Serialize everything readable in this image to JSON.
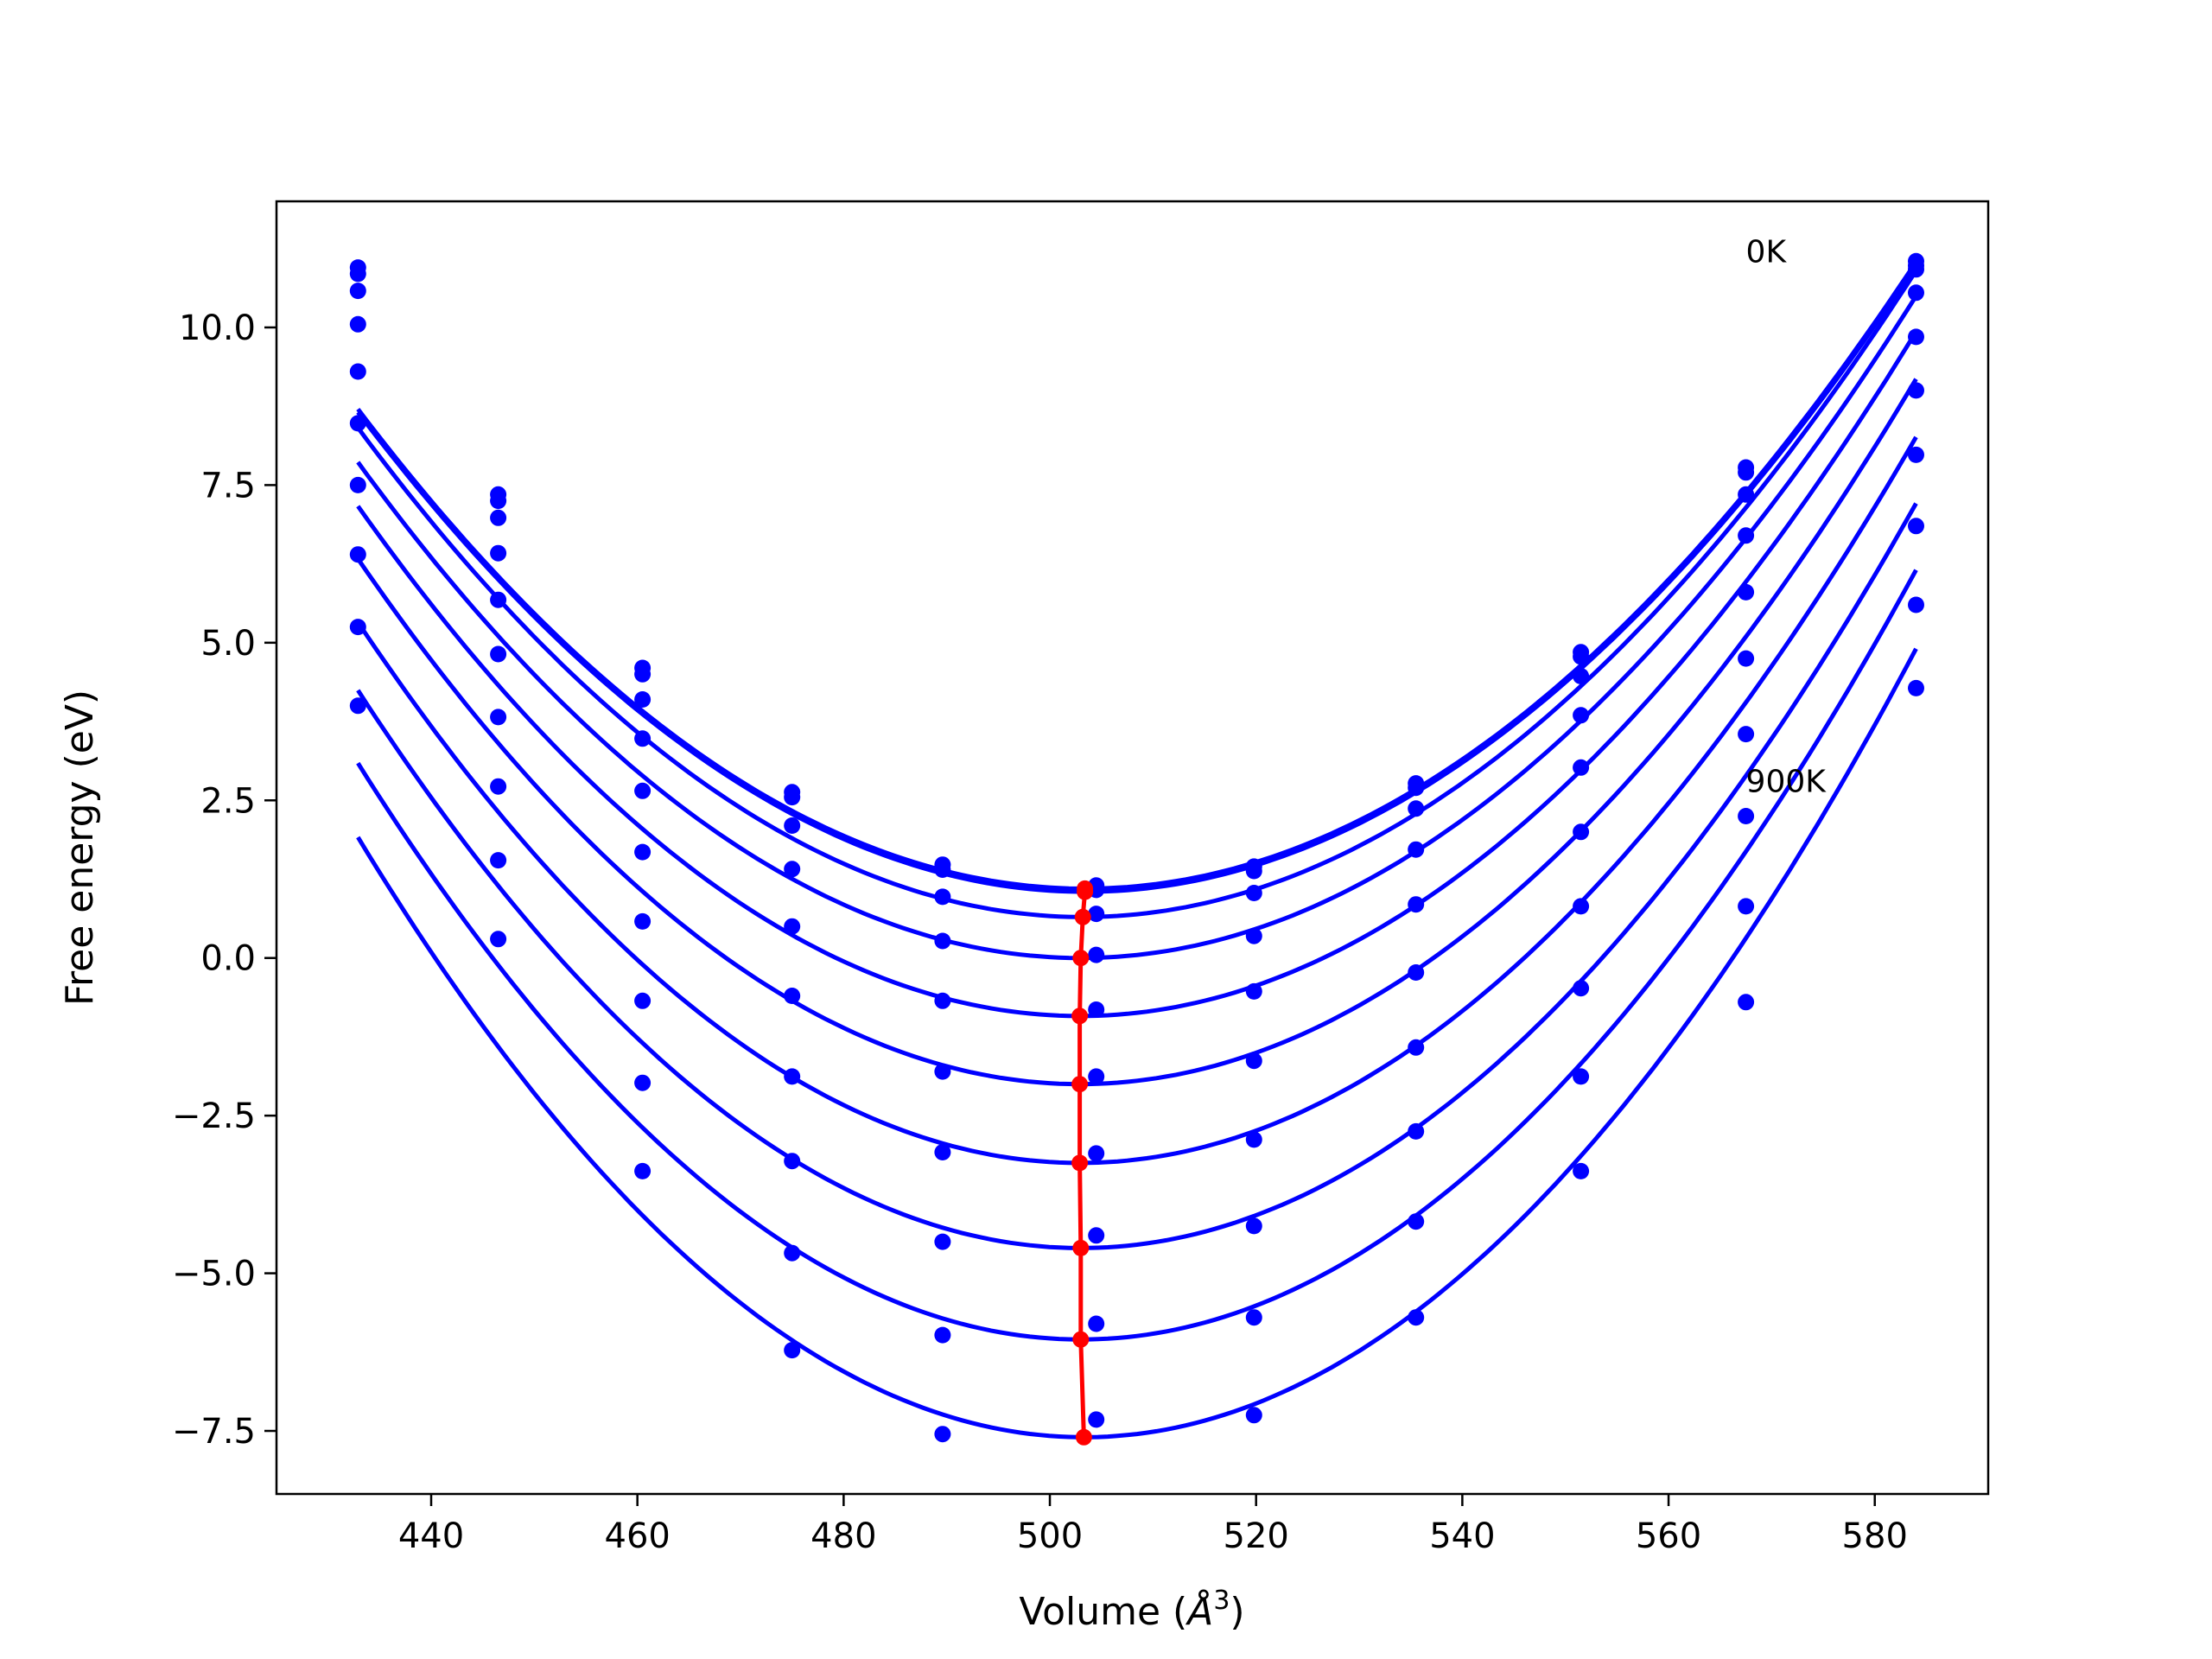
{
  "chart_data": {
    "type": "scatter",
    "xlabel": "Volume",
    "xunit": "Å",
    "xunit_exp": "3",
    "ylabel": "Free energy (eV)",
    "xlim": [
      425,
      591
    ],
    "ylim": [
      -8.5,
      12.0
    ],
    "xticks": [
      440,
      460,
      480,
      500,
      520,
      540,
      560,
      580
    ],
    "xtick_labels": [
      "440",
      "460",
      "480",
      "500",
      "520",
      "540",
      "560",
      "580"
    ],
    "yticks": [
      -7.5,
      -5.0,
      -2.5,
      0.0,
      2.5,
      5.0,
      7.5,
      10.0
    ],
    "ytick_labels": [
      "−7.5",
      "−5.0",
      "−2.5",
      "0.0",
      "2.5",
      "5.0",
      "7.5",
      "10.0"
    ],
    "grid": false,
    "annotations": [
      {
        "text": "0K",
        "x": 567.5,
        "y": 11.2
      },
      {
        "text": "900K",
        "x": 567.5,
        "y": 2.8
      }
    ],
    "fit_color": "#0000ff",
    "min_color": "#ff0000",
    "volumes": [
      432.9,
      446.5,
      460.5,
      475.0,
      489.6,
      504.5,
      519.8,
      535.5,
      551.5,
      567.5,
      584.0
    ],
    "series": [
      {
        "fit": {
          "v0": 503.4,
          "e0": 1.1,
          "a": 0.00153
        },
        "points": [
          10.95,
          7.35,
          4.6,
          2.63,
          1.48,
          1.15,
          1.45,
          2.77,
          4.85,
          7.78,
          11.05
        ],
        "min": {
          "x": 503.4,
          "y": 1.1
        }
      },
      {
        "fit": {
          "v0": 503.4,
          "e0": 1.05,
          "a": 0.00153
        },
        "points": [
          10.85,
          7.25,
          4.5,
          2.55,
          1.4,
          1.08,
          1.38,
          2.7,
          4.78,
          7.7,
          10.98
        ],
        "min": {
          "x": 503.4,
          "y": 1.05
        }
      },
      {
        "fit": {
          "v0": 503.2,
          "e0": 0.65,
          "a": 0.00157
        },
        "points": [
          10.58,
          6.98,
          4.1,
          2.1,
          0.97,
          0.7,
          1.03,
          2.37,
          4.47,
          7.35,
          10.92
        ],
        "min": {
          "x": 503.2,
          "y": 0.65
        }
      },
      {
        "fit": {
          "v0": 503.0,
          "e0": 0.0,
          "a": 0.0016
        },
        "points": [
          10.05,
          6.42,
          3.48,
          1.41,
          0.27,
          0.05,
          0.35,
          1.72,
          3.85,
          6.7,
          10.55
        ],
        "min": {
          "x": 503.0,
          "y": 0.0
        }
      },
      {
        "fit": {
          "v0": 502.9,
          "e0": -0.92,
          "a": 0.00165
        },
        "points": [
          9.3,
          5.68,
          2.65,
          0.5,
          -0.68,
          -0.82,
          -0.53,
          0.85,
          3.02,
          5.8,
          9.85
        ],
        "min": {
          "x": 502.9,
          "y": -0.92
        }
      },
      {
        "fit": {
          "v0": 502.9,
          "e0": -2.0,
          "a": 0.0017
        },
        "points": [
          8.48,
          4.82,
          1.68,
          -0.6,
          -1.8,
          -1.88,
          -1.63,
          -0.23,
          2.0,
          4.75,
          9.0
        ],
        "min": {
          "x": 502.9,
          "y": -2.0
        }
      },
      {
        "fit": {
          "v0": 502.9,
          "e0": -3.25,
          "a": 0.00175
        },
        "points": [
          7.5,
          3.82,
          0.58,
          -1.88,
          -3.08,
          -3.1,
          -2.88,
          -1.42,
          0.82,
          3.55,
          7.98
        ],
        "min": {
          "x": 502.9,
          "y": -3.25
        }
      },
      {
        "fit": {
          "v0": 503.0,
          "e0": -4.6,
          "a": 0.0018
        },
        "points": [
          6.4,
          2.72,
          -0.68,
          -3.22,
          -4.5,
          -4.4,
          -4.25,
          -2.75,
          -0.48,
          2.25,
          6.85
        ],
        "min": {
          "x": 503.0,
          "y": -4.6
        }
      },
      {
        "fit": {
          "v0": 503.0,
          "e0": -6.05,
          "a": 0.00186
        },
        "points": [
          5.25,
          1.55,
          -1.98,
          -4.68,
          -5.98,
          -5.8,
          -5.7,
          -4.18,
          -1.88,
          0.82,
          5.6
        ],
        "min": {
          "x": 503.0,
          "y": -6.05
        }
      },
      {
        "fit": {
          "v0": 503.3,
          "e0": -7.6,
          "a": 0.00192
        },
        "points": [
          4.0,
          0.3,
          -3.38,
          -6.22,
          -7.55,
          -7.32,
          -7.25,
          -5.7,
          -3.38,
          -0.7,
          4.28
        ],
        "min": {
          "x": 503.3,
          "y": -7.6
        }
      }
    ]
  }
}
